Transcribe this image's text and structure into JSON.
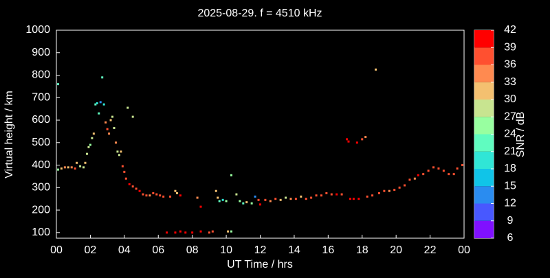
{
  "chart_data": {
    "type": "scatter",
    "title": "2025-08-29. f = 4510 kHz",
    "x_label": "UT Time / hrs",
    "y_label": "Virtual height / km",
    "xlim": [
      0,
      24
    ],
    "ylim": [
      75,
      1000
    ],
    "xticks": [
      {
        "value": 0,
        "label": "00"
      },
      {
        "value": 2,
        "label": "02"
      },
      {
        "value": 4,
        "label": "04"
      },
      {
        "value": 6,
        "label": "06"
      },
      {
        "value": 8,
        "label": "08"
      },
      10,
      12,
      14,
      16,
      18,
      20,
      22,
      {
        "value": 24,
        "label": "00"
      }
    ],
    "yticks": [
      100,
      200,
      300,
      400,
      500,
      600,
      700,
      800,
      900,
      1000
    ],
    "colorbar": {
      "label": "SNR / dB",
      "lim": [
        6,
        42
      ],
      "ticks": [
        6,
        9,
        12,
        15,
        18,
        21,
        24,
        27,
        30,
        33,
        36,
        39,
        42
      ],
      "colors": [
        "#8010ff",
        "#4858ff",
        "#2a8cf0",
        "#10c4e8",
        "#30e6d6",
        "#60fcc0",
        "#98ffa0",
        "#c8e490",
        "#f4c070",
        "#ff8a50",
        "#ff5030",
        "#ff0000"
      ]
    },
    "x": [
      0.1,
      0.1,
      0.3,
      0.5,
      0.7,
      0.9,
      1.1,
      1.2,
      1.4,
      1.6,
      1.7,
      1.8,
      1.9,
      2.0,
      2.1,
      2.2,
      2.3,
      2.4,
      2.5,
      2.6,
      2.7,
      2.8,
      2.9,
      3.0,
      3.1,
      3.2,
      3.3,
      3.4,
      3.5,
      3.6,
      3.7,
      3.8,
      3.9,
      4.0,
      4.1,
      4.2,
      4.3,
      4.5,
      4.5,
      4.7,
      4.9,
      5.1,
      5.3,
      5.5,
      5.7,
      5.9,
      6.1,
      6.3,
      6.5,
      6.7,
      7.0,
      7.1,
      7.3,
      7.0,
      7.3,
      7.6,
      8.0,
      8.3,
      8.5,
      8.5,
      9.0,
      9.2,
      9.4,
      9.5,
      9.6,
      9.8,
      10.0,
      10.1,
      10.3,
      10.3,
      10.6,
      10.8,
      11.0,
      11.2,
      11.5,
      11.7,
      11.9,
      12.0,
      12.3,
      12.6,
      12.9,
      13.2,
      13.5,
      13.8,
      14.1,
      14.4,
      14.7,
      15.0,
      15.3,
      15.6,
      15.9,
      16.2,
      16.5,
      16.8,
      17.1,
      17.2,
      17.3,
      17.5,
      17.7,
      17.8,
      18.0,
      18.2,
      18.3,
      18.6,
      18.8,
      19.0,
      19.3,
      19.6,
      19.9,
      20.2,
      20.5,
      20.8,
      21.1,
      21.3,
      21.6,
      21.9,
      22.2,
      22.5,
      22.8,
      23.1,
      23.4,
      23.6,
      23.9
    ],
    "y": [
      760,
      380,
      385,
      390,
      390,
      390,
      385,
      410,
      395,
      390,
      410,
      450,
      480,
      490,
      520,
      540,
      670,
      675,
      630,
      680,
      790,
      670,
      590,
      560,
      540,
      600,
      615,
      565,
      500,
      460,
      445,
      460,
      395,
      370,
      340,
      655,
      315,
      615,
      305,
      295,
      285,
      270,
      265,
      265,
      275,
      270,
      265,
      260,
      100,
      260,
      285,
      275,
      265,
      100,
      105,
      100,
      100,
      255,
      215,
      105,
      100,
      105,
      285,
      255,
      240,
      245,
      240,
      105,
      355,
      105,
      270,
      240,
      230,
      235,
      230,
      260,
      245,
      225,
      245,
      240,
      250,
      245,
      255,
      250,
      250,
      260,
      250,
      255,
      265,
      265,
      275,
      270,
      270,
      270,
      515,
      505,
      250,
      250,
      500,
      250,
      515,
      525,
      260,
      265,
      825,
      275,
      285,
      285,
      290,
      300,
      310,
      335,
      340,
      355,
      360,
      375,
      390,
      385,
      375,
      360,
      360,
      385,
      400
    ],
    "snr": [
      21,
      24,
      30,
      33,
      30,
      33,
      36,
      30,
      27,
      27,
      30,
      27,
      27,
      24,
      27,
      30,
      21,
      18,
      21,
      12,
      21,
      18,
      33,
      36,
      33,
      30,
      27,
      27,
      33,
      27,
      27,
      30,
      36,
      36,
      36,
      27,
      39,
      27,
      36,
      36,
      39,
      36,
      36,
      33,
      36,
      36,
      36,
      36,
      39,
      36,
      30,
      30,
      39,
      39,
      39,
      39,
      39,
      33,
      39,
      39,
      36,
      36,
      30,
      30,
      21,
      18,
      24,
      30,
      24,
      24,
      27,
      24,
      21,
      30,
      24,
      12,
      36,
      39,
      36,
      33,
      36,
      30,
      27,
      33,
      36,
      30,
      36,
      36,
      36,
      36,
      36,
      36,
      39,
      36,
      39,
      39,
      39,
      39,
      39,
      39,
      36,
      33,
      36,
      36,
      30,
      36,
      36,
      33,
      36,
      36,
      36,
      36,
      33,
      39,
      36,
      36,
      36,
      36,
      36,
      36,
      36,
      36,
      36
    ]
  }
}
